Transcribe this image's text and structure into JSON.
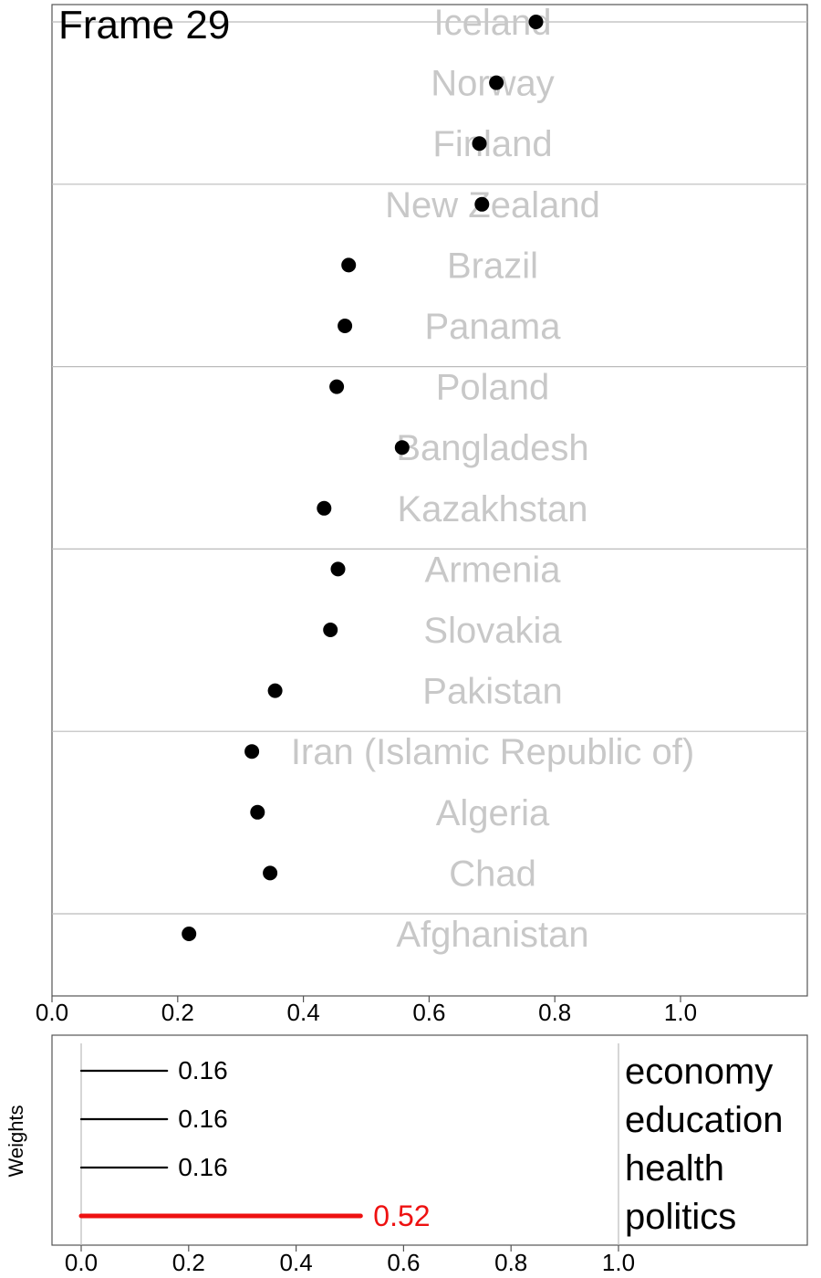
{
  "frame_label": "Frame 29",
  "chart_data": [
    {
      "type": "scatter",
      "title": "",
      "xlabel": "",
      "ylabel": "",
      "xlim": [
        0.0,
        1.2
      ],
      "x_ticks": [
        "0.0",
        "0.2",
        "0.4",
        "0.6",
        "0.8",
        "1.0"
      ],
      "grid": "horizontal group separators",
      "marker_color": "#000000",
      "label_color": "#c8c8c8",
      "points": [
        {
          "country": "Iceland",
          "value": 0.77
        },
        {
          "country": "Norway",
          "value": 0.707
        },
        {
          "country": "Finland",
          "value": 0.68
        },
        {
          "country": "New Zealand",
          "value": 0.684
        },
        {
          "country": "Brazil",
          "value": 0.472
        },
        {
          "country": "Panama",
          "value": 0.466
        },
        {
          "country": "Poland",
          "value": 0.453
        },
        {
          "country": "Bangladesh",
          "value": 0.557
        },
        {
          "country": "Kazakhstan",
          "value": 0.433
        },
        {
          "country": "Armenia",
          "value": 0.455
        },
        {
          "country": "Slovakia",
          "value": 0.443
        },
        {
          "country": "Pakistan",
          "value": 0.355
        },
        {
          "country": "Iran (Islamic Republic of)",
          "value": 0.318
        },
        {
          "country": "Algeria",
          "value": 0.327
        },
        {
          "country": "Chad",
          "value": 0.347
        },
        {
          "country": "Afghanistan",
          "value": 0.218
        }
      ]
    },
    {
      "type": "bar",
      "orientation": "horizontal",
      "title": "",
      "ylabel": "Weights",
      "xlim": [
        0.0,
        1.4
      ],
      "x_ticks": [
        "0.0",
        "0.2",
        "0.4",
        "0.6",
        "0.8",
        "1.0"
      ],
      "default_color": "#000000",
      "highlight_color": "#ee1111",
      "bars": [
        {
          "name": "economy",
          "value": 0.16,
          "label": "0.16",
          "highlight": false
        },
        {
          "name": "education",
          "value": 0.16,
          "label": "0.16",
          "highlight": false
        },
        {
          "name": "health",
          "value": 0.16,
          "label": "0.16",
          "highlight": false
        },
        {
          "name": "politics",
          "value": 0.52,
          "label": "0.52",
          "highlight": true
        }
      ]
    }
  ]
}
